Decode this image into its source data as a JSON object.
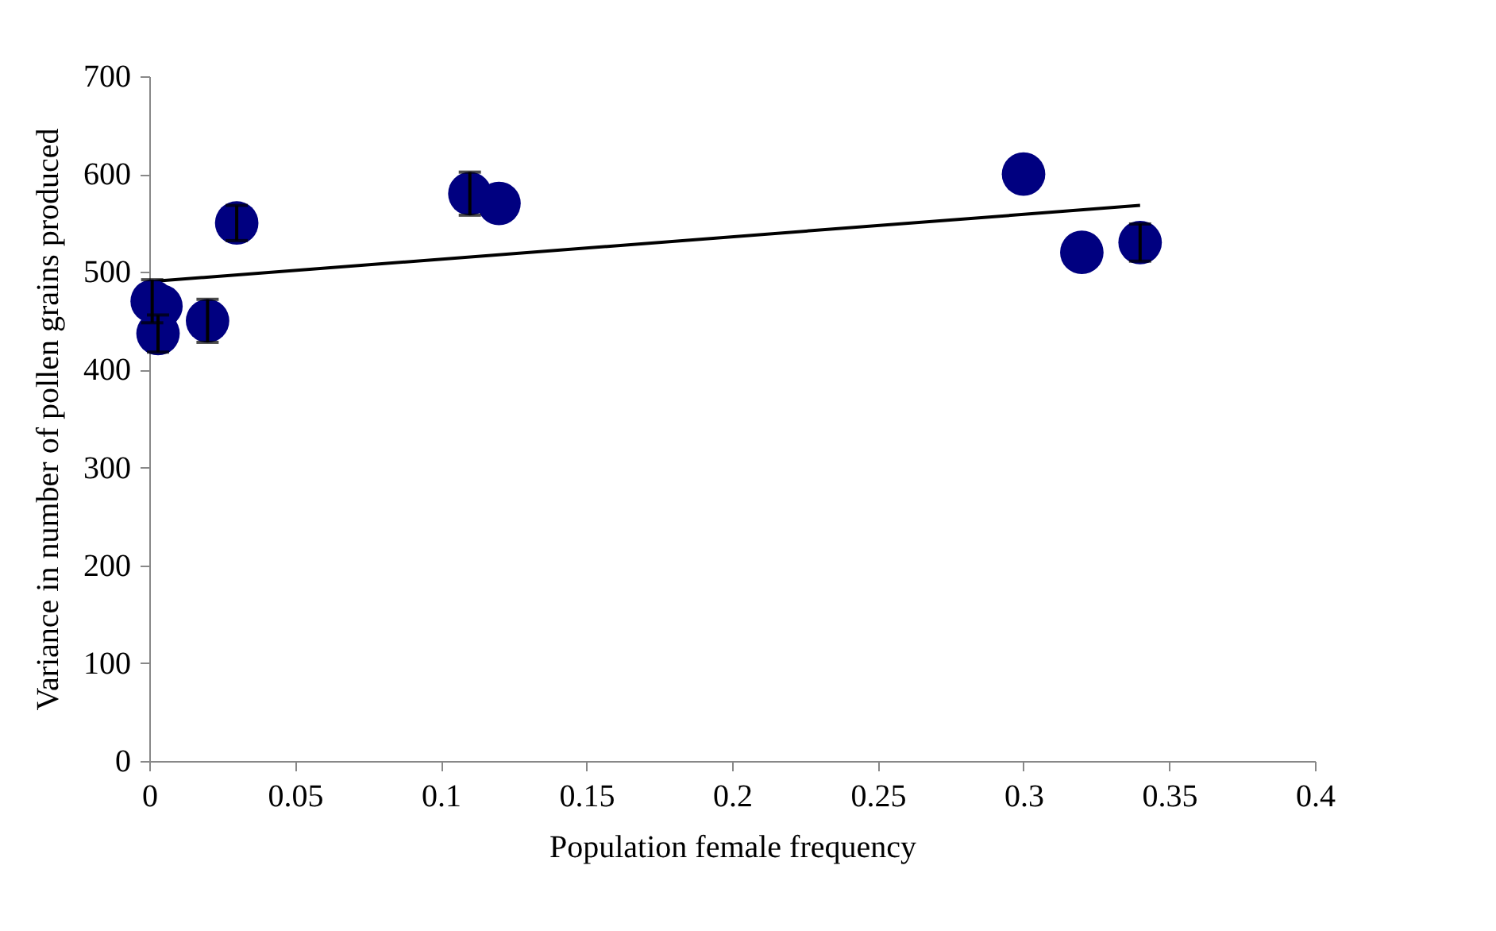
{
  "chart_data": {
    "type": "scatter",
    "xlabel": "Population female frequency",
    "ylabel": "Variance in number of pollen grains produced",
    "xlim": [
      0,
      0.4
    ],
    "xticks": [
      0,
      0.05,
      0.1,
      0.15,
      0.2,
      0.25,
      0.3,
      0.35,
      0.4
    ],
    "ylim": [
      0,
      700
    ],
    "yticks": [
      0,
      100,
      200,
      300,
      400,
      500,
      600,
      700
    ],
    "grid": false,
    "series": [
      {
        "color": "#000080",
        "marker": "circle",
        "x": [
          0.001,
          0.004,
          0.003,
          0.02,
          0.03,
          0.11,
          0.12,
          0.3,
          0.32,
          0.34
        ],
        "values": [
          470,
          465,
          437,
          450,
          550,
          580,
          570,
          600,
          520,
          530
        ],
        "errors": [
          22,
          null,
          19,
          22,
          18,
          22,
          null,
          null,
          null,
          19
        ]
      },
      {
        "type": "line",
        "color": "#000000",
        "x": [
          0,
          0.34
        ],
        "values": [
          490,
          568
        ],
        "line_style": "solid"
      }
    ]
  }
}
